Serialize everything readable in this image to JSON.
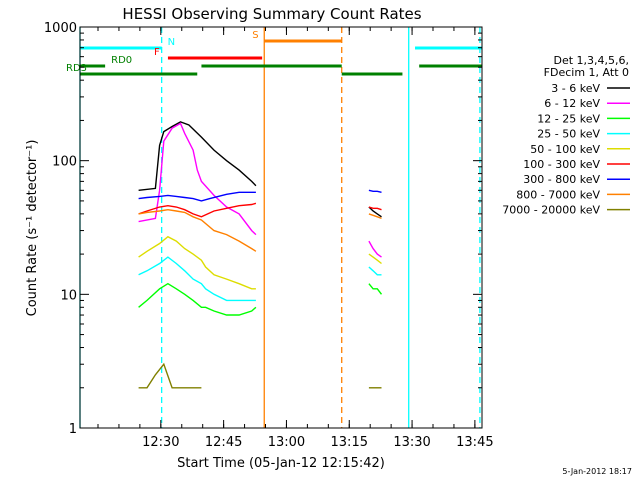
{
  "chart_data": {
    "type": "line",
    "title": "HESSI Observing Summary Count Rates",
    "xlabel": "Start Time (05-Jan-12 12:15:42)",
    "ylabel": "Count Rate (s⁻¹ detector⁻¹)",
    "y_scale": "log",
    "ylim": [
      1,
      1000
    ],
    "xlim_minutes_from_start": [
      -5,
      91
    ],
    "x_tick_labels": [
      {
        "label": "12:30",
        "t": 14.3
      },
      {
        "label": "12:45",
        "t": 29.3
      },
      {
        "label": "13:00",
        "t": 44.3
      },
      {
        "label": "13:15",
        "t": 59.3
      },
      {
        "label": "13:30",
        "t": 74.3
      },
      {
        "label": "13:45",
        "t": 89.3
      }
    ],
    "y_tick_labels": [
      "1",
      "10",
      "100",
      "1000"
    ],
    "legend_placement": "right",
    "legend_header": [
      "Det 1,3,4,5,6,",
      "FDecim 1, Att 0"
    ],
    "footer_date": "5-Jan-2012 18:17",
    "series": [
      {
        "name": "3 - 6 keV",
        "color": "#000000",
        "segments": [
          {
            "x": [
              9,
              13,
              14,
              15,
              17,
              19,
              21,
              24,
              27,
              30,
              33,
              36,
              37
            ],
            "y": [
              60,
              62,
              130,
              165,
              180,
              195,
              185,
              150,
              120,
              100,
              85,
              70,
              65
            ]
          },
          {
            "x": [
              64,
              65,
              66,
              67
            ],
            "y": [
              45,
              42,
              40,
              38
            ]
          }
        ]
      },
      {
        "name": "6 - 12 keV",
        "color": "#ff00ff",
        "segments": [
          {
            "x": [
              9,
              13,
              14,
              15,
              17,
              19,
              20,
              22,
              23,
              24,
              27,
              30,
              33,
              36,
              37
            ],
            "y": [
              35,
              37,
              60,
              140,
              175,
              190,
              160,
              120,
              85,
              70,
              55,
              45,
              40,
              30,
              28
            ]
          },
          {
            "x": [
              64,
              65,
              66,
              67
            ],
            "y": [
              25,
              22,
              20,
              19
            ]
          }
        ]
      },
      {
        "name": "12 - 25 keV",
        "color": "#00ff00",
        "segments": [
          {
            "x": [
              9,
              11,
              14,
              16,
              18,
              20,
              22,
              24,
              25,
              27,
              30,
              33,
              36,
              37
            ],
            "y": [
              8,
              9,
              11,
              12,
              11,
              10,
              9,
              8,
              8,
              7.5,
              7,
              7,
              7.5,
              8
            ]
          },
          {
            "x": [
              64,
              65,
              66,
              67
            ],
            "y": [
              12,
              11,
              11,
              10
            ]
          }
        ]
      },
      {
        "name": "25 - 50 keV",
        "color": "#00ffff",
        "segments": [
          {
            "x": [
              9,
              11,
              14,
              16,
              18,
              20,
              22,
              24,
              25,
              27,
              30,
              33,
              36,
              37
            ],
            "y": [
              14,
              15,
              17,
              19,
              17,
              15,
              13,
              12,
              11,
              10,
              9,
              9,
              9,
              9
            ]
          },
          {
            "x": [
              64,
              65,
              66,
              67
            ],
            "y": [
              16,
              15,
              14,
              14
            ]
          }
        ]
      },
      {
        "name": "50 - 100 keV",
        "color": "#dddd00",
        "segments": [
          {
            "x": [
              9,
              11,
              14,
              16,
              18,
              20,
              22,
              24,
              25,
              27,
              30,
              33,
              36,
              37
            ],
            "y": [
              19,
              21,
              24,
              27,
              25,
              22,
              20,
              18,
              16,
              14,
              13,
              12,
              11,
              11
            ]
          },
          {
            "x": [
              64,
              65,
              66,
              67
            ],
            "y": [
              20,
              19,
              18,
              17
            ]
          }
        ]
      },
      {
        "name": "100 - 300 keV",
        "color": "#ff0000",
        "segments": [
          {
            "x": [
              9,
              11,
              14,
              16,
              18,
              20,
              22,
              24,
              27,
              30,
              33,
              36,
              37
            ],
            "y": [
              40,
              42,
              45,
              46,
              45,
              43,
              40,
              38,
              42,
              44,
              46,
              47,
              48
            ]
          },
          {
            "x": [
              64,
              65,
              66,
              67
            ],
            "y": [
              45,
              44,
              44,
              43
            ]
          }
        ]
      },
      {
        "name": "300 - 800 keV",
        "color": "#0000ff",
        "segments": [
          {
            "x": [
              9,
              11,
              14,
              16,
              18,
              20,
              22,
              24,
              26,
              28,
              30,
              33,
              36,
              37
            ],
            "y": [
              52,
              53,
              54,
              55,
              54,
              53,
              52,
              50,
              52,
              54,
              56,
              58,
              58,
              58
            ]
          },
          {
            "x": [
              64,
              65,
              66,
              67
            ],
            "y": [
              60,
              59,
              59,
              58
            ]
          }
        ]
      },
      {
        "name": "800 - 7000 keV",
        "color": "#ff8000",
        "segments": [
          {
            "x": [
              9,
              11,
              14,
              16,
              18,
              20,
              22,
              24,
              27,
              30,
              33,
              36,
              37
            ],
            "y": [
              40,
              41,
              42,
              43,
              42,
              41,
              38,
              36,
              30,
              28,
              25,
              22,
              21
            ]
          },
          {
            "x": [
              64,
              65,
              66,
              67
            ],
            "y": [
              40,
              39,
              38,
              37
            ]
          }
        ]
      },
      {
        "name": "7000 - 20000 keV",
        "color": "#808000",
        "segments": [
          {
            "x": [
              9,
              11,
              13,
              15,
              17,
              19,
              21,
              23,
              24
            ],
            "y": [
              2,
              2,
              2.5,
              3,
              2,
              2,
              2,
              2,
              2
            ]
          },
          {
            "x": [
              64,
              65,
              66,
              67
            ],
            "y": [
              2,
              2,
              2,
              2
            ]
          }
        ]
      }
    ],
    "state_bars": [
      {
        "label": "N",
        "color": "#00ffff",
        "segments": [
          [
            -5,
            14.5
          ],
          [
            75,
            91
          ]
        ]
      },
      {
        "label": "S",
        "color": "#ff8000",
        "segments": [
          [
            39,
            57.5
          ]
        ]
      },
      {
        "label": "F",
        "color": "#ff0000",
        "segments": [
          [
            16,
            38.5
          ]
        ]
      },
      {
        "label": "RD0",
        "color": "#008000",
        "segments": [
          [
            -5,
            1
          ],
          [
            24,
            57.5
          ],
          [
            76,
            91
          ]
        ]
      },
      {
        "label": "RD3",
        "color": "#008000",
        "segments": [
          [
            -5,
            23
          ],
          [
            57.5,
            72
          ]
        ]
      }
    ],
    "vertical_markers": [
      {
        "t": -5,
        "color": "#00ffff",
        "style": "solid"
      },
      {
        "t": 14.5,
        "color": "#00ffff",
        "style": "dashed"
      },
      {
        "t": 39,
        "color": "#ff8000",
        "style": "solid"
      },
      {
        "t": 57.5,
        "color": "#ff8000",
        "style": "dashed"
      },
      {
        "t": 73.5,
        "color": "#00ffff",
        "style": "solid"
      },
      {
        "t": 90.5,
        "color": "#00ffff",
        "style": "dashed"
      }
    ]
  }
}
